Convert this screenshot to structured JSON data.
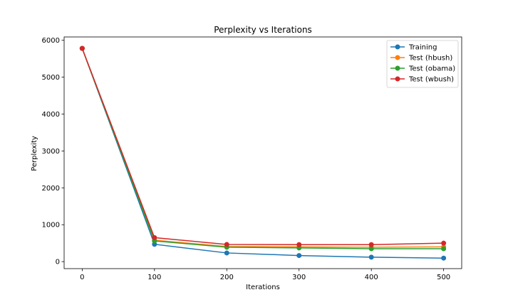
{
  "chart_data": {
    "type": "line",
    "title": "Perplexity vs Iterations",
    "xlabel": "Iterations",
    "ylabel": "Perplexity",
    "x": [
      0,
      100,
      200,
      300,
      400,
      500
    ],
    "xlim": [
      -25,
      525
    ],
    "ylim": [
      -190,
      6090
    ],
    "xticks": [
      0,
      100,
      200,
      300,
      400,
      500
    ],
    "yticks": [
      0,
      1000,
      2000,
      3000,
      4000,
      5000,
      6000
    ],
    "grid": false,
    "legend_position": "top-right",
    "series": [
      {
        "name": "Training",
        "color": "#1f77b4",
        "values": [
          5780,
          470,
          235,
          165,
          120,
          95
        ]
      },
      {
        "name": "Test (hbush)",
        "color": "#ff7f0e",
        "values": [
          5780,
          580,
          410,
          400,
          390,
          400
        ]
      },
      {
        "name": "Test (obama)",
        "color": "#2ca02c",
        "values": [
          5780,
          560,
          390,
          370,
          350,
          350
        ]
      },
      {
        "name": "Test (wbush)",
        "color": "#d62728",
        "values": [
          5780,
          650,
          465,
          460,
          460,
          500
        ]
      }
    ]
  }
}
